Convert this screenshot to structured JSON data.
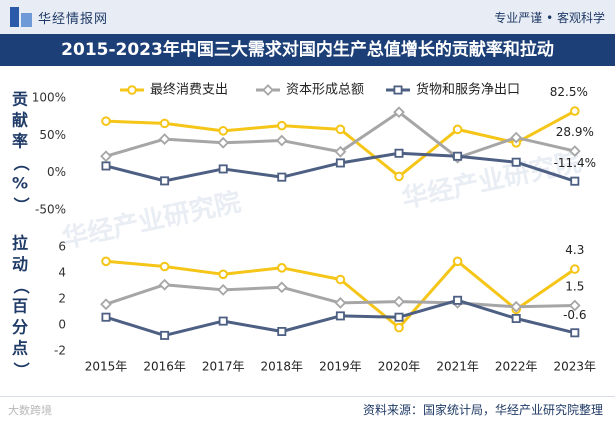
{
  "header": {
    "logo_text": "华经情报网",
    "right_text": "专业严谨 • 客观科学"
  },
  "title": "2015-2023年中国三大需求对国内生产总值增长的贡献率和拉动",
  "watermark": "华经产业研究院",
  "footer": {
    "source": "资料来源：国家统计局，华经产业研究院整理",
    "mark": "大数跨境"
  },
  "chart_data": [
    {
      "type": "line",
      "ylabel": "贡献率（%）",
      "ytick_labels": [
        "100%",
        "50%",
        "0%",
        "-50%"
      ],
      "ylim": [
        -50,
        100
      ],
      "categories": [
        "2015年",
        "2016年",
        "2017年",
        "2018年",
        "2019年",
        "2020年",
        "2021年",
        "2022年",
        "2023年"
      ],
      "series": [
        {
          "name": "最终消费支出",
          "values": [
            69,
            66,
            56,
            63,
            58,
            -5,
            58,
            40,
            82.5
          ],
          "color": "#f5c518",
          "marker": "circle"
        },
        {
          "name": "资本形成总额",
          "values": [
            22,
            45,
            40,
            43,
            28,
            81,
            20,
            47,
            28.9
          ],
          "color": "#a6a6a6",
          "marker": "diamond"
        },
        {
          "name": "货物和服务净出口",
          "values": [
            9,
            -11,
            5,
            -6,
            13,
            26,
            22,
            14,
            -11.4
          ],
          "color": "#4d5f82",
          "marker": "square"
        }
      ],
      "annotations": [
        "82.5%",
        "28.9%",
        "-11.4%"
      ],
      "legend": "top",
      "grid": false
    },
    {
      "type": "line",
      "ylabel": "拉动（百分点）",
      "ytick_labels": [
        "6",
        "4",
        "2",
        "0",
        "-2"
      ],
      "ylim": [
        -2,
        6
      ],
      "categories": [
        "2015年",
        "2016年",
        "2017年",
        "2018年",
        "2019年",
        "2020年",
        "2021年",
        "2022年",
        "2023年"
      ],
      "series": [
        {
          "name": "最终消费支出",
          "values": [
            4.9,
            4.5,
            3.9,
            4.4,
            3.5,
            -0.2,
            4.9,
            1.2,
            4.3
          ],
          "color": "#f5c518",
          "marker": "circle"
        },
        {
          "name": "资本形成总额",
          "values": [
            1.6,
            3.1,
            2.7,
            2.9,
            1.7,
            1.8,
            1.7,
            1.4,
            1.5
          ],
          "color": "#a6a6a6",
          "marker": "diamond"
        },
        {
          "name": "货物和服务净出口",
          "values": [
            0.6,
            -0.8,
            0.3,
            -0.5,
            0.7,
            0.6,
            1.9,
            0.5,
            -0.6
          ],
          "color": "#4d5f82",
          "marker": "square"
        }
      ],
      "annotations": [
        "4.3",
        "1.5",
        "-0.6"
      ],
      "grid": false
    }
  ]
}
